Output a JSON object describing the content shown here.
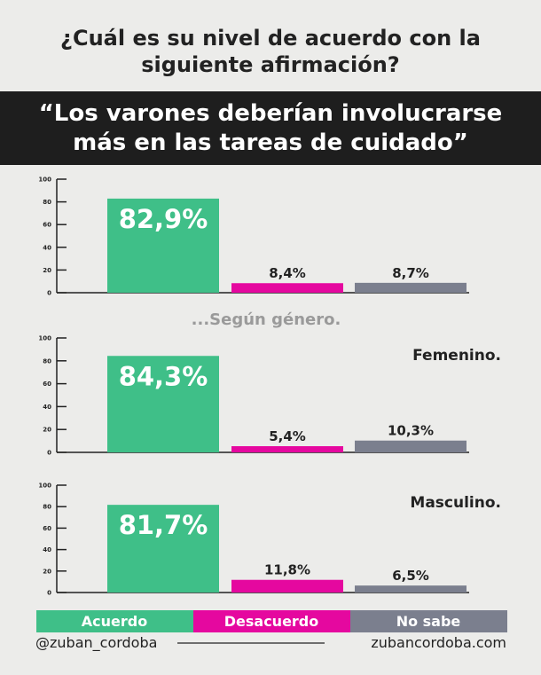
{
  "header": {
    "question_line1": "¿Cuál es su nivel de acuerdo con la",
    "question_line2": "siguiente afirmación?",
    "statement_line1": "“Los varones deberían involucrarse",
    "statement_line2": "más en las tareas de cuidado”"
  },
  "between_label": "...Según género.",
  "colors": {
    "Acuerdo": "#3fbf88",
    "Desacuerdo": "#e5089f",
    "No sabe": "#7b7f8e",
    "background": "#ececea",
    "banner": "#1e1e1e"
  },
  "chart_data": [
    {
      "type": "bar",
      "title": "",
      "categories": [
        "Acuerdo",
        "Desacuerdo",
        "No sabe"
      ],
      "values": [
        82.9,
        8.4,
        8.7
      ],
      "labels": [
        "82,9%",
        "8,4%",
        "8,7%"
      ],
      "ylim": [
        0,
        100
      ],
      "yticks": [
        "0",
        "20",
        "40",
        "60",
        "80",
        "100"
      ]
    },
    {
      "type": "bar",
      "title": "Femenino.",
      "categories": [
        "Acuerdo",
        "Desacuerdo",
        "No sabe"
      ],
      "values": [
        84.3,
        5.4,
        10.3
      ],
      "labels": [
        "84,3%",
        "5,4%",
        "10,3%"
      ],
      "ylim": [
        0,
        100
      ],
      "yticks": [
        "0",
        "20",
        "40",
        "60",
        "80",
        "100"
      ]
    },
    {
      "type": "bar",
      "title": "Masculino.",
      "categories": [
        "Acuerdo",
        "Desacuerdo",
        "No sabe"
      ],
      "values": [
        81.7,
        11.8,
        6.5
      ],
      "labels": [
        "81,7%",
        "11,8%",
        "6,5%"
      ],
      "ylim": [
        0,
        100
      ],
      "yticks": [
        "0",
        "20",
        "40",
        "60",
        "80",
        "100"
      ]
    }
  ],
  "legend": [
    "Acuerdo",
    "Desacuerdo",
    "No sabe"
  ],
  "footer": {
    "left": "@zuban_cordoba",
    "right": "zubancordoba.com"
  }
}
